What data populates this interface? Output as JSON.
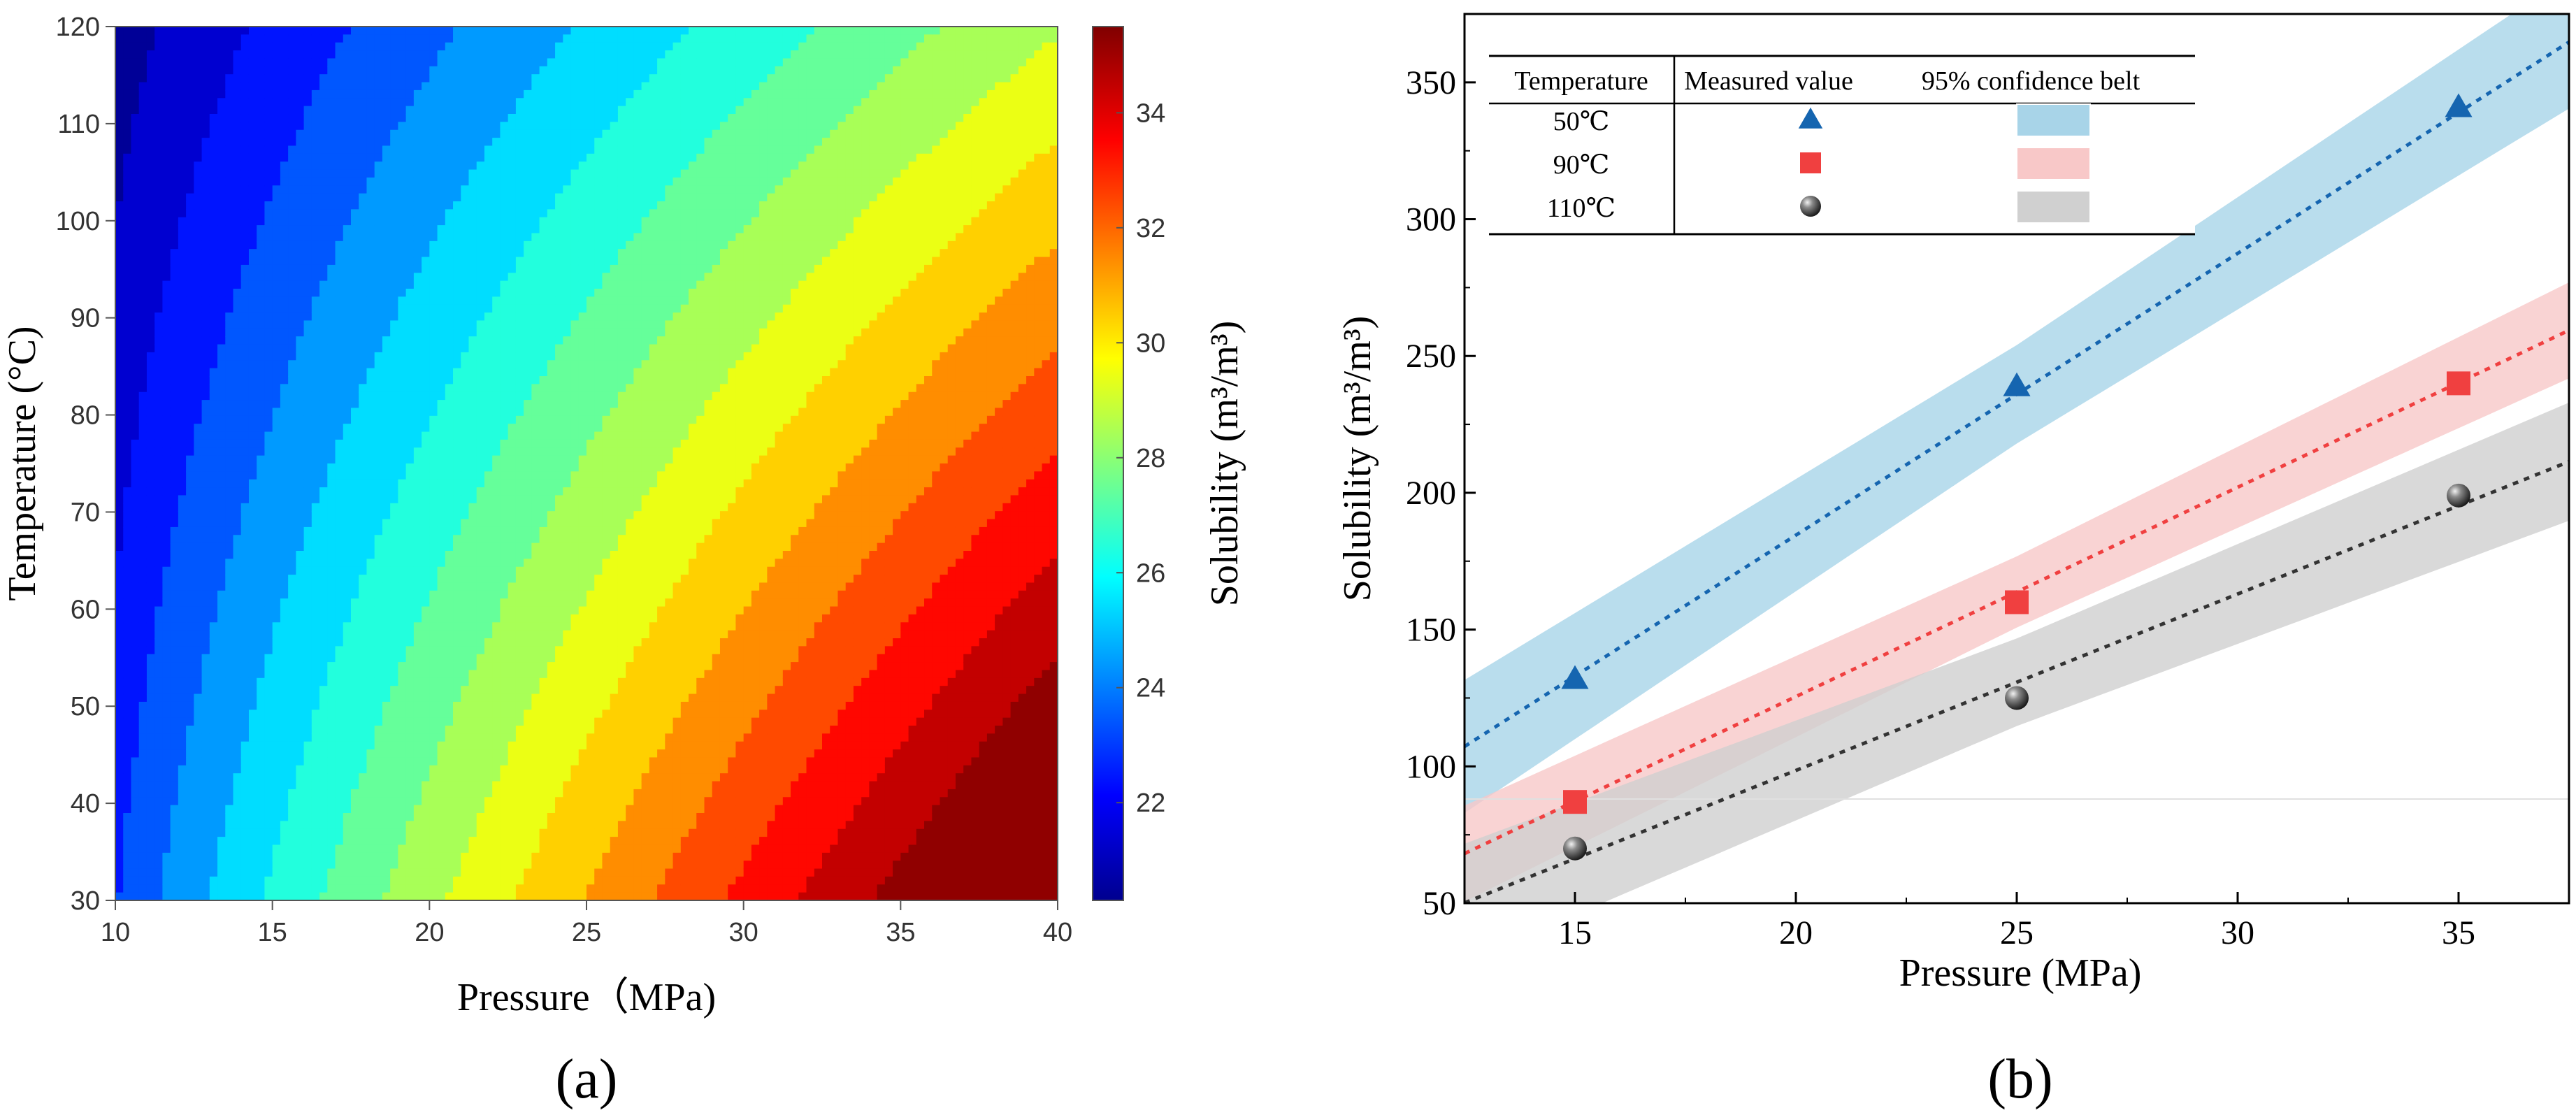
{
  "chart_data": [
    {
      "panel_label": "(a)",
      "type": "heatmap",
      "subtype": "filled-contour",
      "xlabel": "Pressure（MPa)",
      "ylabel": "Temperature (°C)",
      "colorbar_label": "Solubility (m³/m³)",
      "xlim": [
        10,
        40
      ],
      "ylim": [
        30,
        120
      ],
      "x_ticks": [
        "10",
        "15",
        "20",
        "25",
        "30",
        "35",
        "40"
      ],
      "y_ticks": [
        "30",
        "40",
        "50",
        "60",
        "70",
        "80",
        "90",
        "100",
        "110",
        "120"
      ],
      "colorbar_range": [
        20.3,
        35.5
      ],
      "colorbar_ticks": [
        "22",
        "24",
        "26",
        "28",
        "30",
        "32",
        "34"
      ],
      "contour_levels": [
        21,
        22,
        23,
        24,
        25,
        26,
        27,
        28,
        29,
        30,
        31,
        32,
        33,
        34,
        35
      ],
      "colormap": "jet",
      "description_of_field": "Solubility increases with pressure and decreases with temperature; minimum (~20.5) at 10 MPa,120 °C; maximum (~35.5) at 40 MPa,30 °C"
    },
    {
      "panel_label": "(b)",
      "type": "scatter",
      "xlabel": "Pressure (MPa)",
      "ylabel": "Solubility (m³/m³)",
      "xlim": [
        12.5,
        37.5
      ],
      "ylim": [
        50,
        375
      ],
      "x_ticks": [
        "15",
        "20",
        "25",
        "30",
        "35"
      ],
      "y_ticks": [
        "50",
        "100",
        "150",
        "200",
        "250",
        "300",
        "350"
      ],
      "legend": {
        "position": "top-left",
        "headers": [
          "Temperature",
          "Measured value",
          "95% confidence belt"
        ],
        "rows": [
          "50℃",
          "90℃",
          "110℃"
        ]
      },
      "series": [
        {
          "name": "50℃",
          "color": "#1565b0",
          "band_color": "#a8d4e8",
          "marker": "triangle",
          "x": [
            15,
            25,
            35
          ],
          "y": [
            132,
            239,
            341
          ],
          "fit": {
            "slope": 10.3,
            "intercept": -21.5
          },
          "band_halfwidth": 18
        },
        {
          "name": "90℃",
          "color": "#f04040",
          "band_color": "#f8c8c8",
          "marker": "square",
          "x": [
            15,
            25,
            35
          ],
          "y": [
            87,
            160,
            240
          ],
          "fit": {
            "slope": 7.65,
            "intercept": -27.5
          },
          "band_halfwidth": 13
        },
        {
          "name": "110℃",
          "color": "#333333",
          "band_color": "#d0d0d0",
          "marker": "sphere",
          "x": [
            15,
            25,
            35
          ],
          "y": [
            70,
            125,
            199
          ],
          "fit": {
            "slope": 6.45,
            "intercept": -30.5
          },
          "band_halfwidth": 16
        }
      ]
    }
  ]
}
